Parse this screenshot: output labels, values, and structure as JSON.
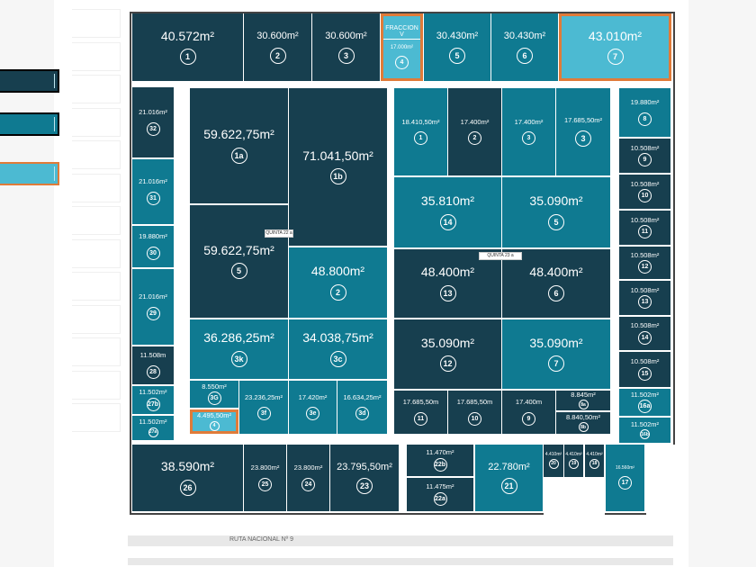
{
  "colors": {
    "dark": "#173f4f",
    "mid": "#0f7a91",
    "light": "#4cbad2",
    "highlight": "#e07b39"
  },
  "legend": [
    {
      "color": "dark"
    },
    {
      "color": "mid"
    },
    {
      "color": "light",
      "highlight": true
    }
  ],
  "labels": {
    "quinta_22a": "QUINTA 22 a",
    "quinta_23a": "QUINTA 23 a",
    "road": "RUTA NACIONAL Nº 9",
    "fraccion": "FRACCION V"
  },
  "lots": [
    {
      "id": "1",
      "area": "40.572m²",
      "color": "dark"
    },
    {
      "id": "2",
      "area": "30.600m²",
      "color": "dark"
    },
    {
      "id": "3",
      "area": "30.600m²",
      "color": "dark"
    },
    {
      "id": "4",
      "area": "17.000m²",
      "color": "light",
      "selected": true
    },
    {
      "id": "5",
      "area": "30.430m²",
      "color": "mid"
    },
    {
      "id": "6",
      "area": "30.430m²",
      "color": "mid"
    },
    {
      "id": "7",
      "area": "43.010m²",
      "color": "light",
      "selected": true
    },
    {
      "id": "32",
      "area": "21.016m²",
      "color": "dark"
    },
    {
      "id": "31",
      "area": "21.016m²",
      "color": "mid"
    },
    {
      "id": "30",
      "area": "19.880m²",
      "color": "mid"
    },
    {
      "id": "29",
      "area": "21.016m²",
      "color": "mid"
    },
    {
      "id": "28",
      "area": "11.508m",
      "color": "dark"
    },
    {
      "id": "27b",
      "area": "11.502m²",
      "color": "mid"
    },
    {
      "id": "27a",
      "area": "11.502m²",
      "color": "mid"
    },
    {
      "id": "1a",
      "area": "59.622,75m²",
      "color": "dark"
    },
    {
      "id": "1b",
      "area": "71.041,50m²",
      "color": "dark"
    },
    {
      "id": "5",
      "area": "59.622,75m²",
      "color": "dark"
    },
    {
      "id": "2",
      "area": "48.800m²",
      "color": "mid"
    },
    {
      "id": "3k",
      "area": "36.286,25m²",
      "color": "mid"
    },
    {
      "id": "3c",
      "area": "34.038,75m²",
      "color": "mid"
    },
    {
      "id": "3G",
      "area": "8.550m²",
      "color": "mid"
    },
    {
      "id": "4",
      "area": "4.495,50m²",
      "color": "light",
      "selected": true
    },
    {
      "id": "3f",
      "area": "23.236,25m²",
      "color": "mid"
    },
    {
      "id": "3e",
      "area": "17.420m²",
      "color": "mid"
    },
    {
      "id": "3d",
      "area": "16.634,25m²",
      "color": "mid"
    },
    {
      "id": "1",
      "area": "18.410,50m²",
      "color": "mid"
    },
    {
      "id": "2",
      "area": "17.400m²",
      "color": "dark"
    },
    {
      "id": "3",
      "area": "17.400m²",
      "color": "mid"
    },
    {
      "id": "3",
      "area": "17.685,50m²",
      "color": "mid"
    },
    {
      "id": "14",
      "area": "35.810m²",
      "color": "mid"
    },
    {
      "id": "5",
      "area": "35.090m²",
      "color": "mid"
    },
    {
      "id": "13",
      "area": "48.400m²",
      "color": "dark"
    },
    {
      "id": "6",
      "area": "48.400m²",
      "color": "dark"
    },
    {
      "id": "12",
      "area": "35.090m²",
      "color": "dark"
    },
    {
      "id": "7",
      "area": "35.090m²",
      "color": "mid"
    },
    {
      "id": "11",
      "area": "17.685,50m",
      "color": "dark"
    },
    {
      "id": "10",
      "area": "17.685,50m",
      "color": "dark"
    },
    {
      "id": "9",
      "area": "17.400m",
      "color": "dark"
    },
    {
      "id": "8a",
      "area": "8.845m²",
      "color": "dark"
    },
    {
      "id": "8b",
      "area": "8.840,50m²",
      "color": "dark"
    },
    {
      "id": "8",
      "area": "19.880m²",
      "color": "mid"
    },
    {
      "id": "9",
      "area": "10.508m²",
      "color": "dark"
    },
    {
      "id": "10",
      "area": "10.508m²",
      "color": "dark"
    },
    {
      "id": "11",
      "area": "10.508m²",
      "color": "dark"
    },
    {
      "id": "12",
      "area": "10.508m²",
      "color": "dark"
    },
    {
      "id": "13",
      "area": "10.508m²",
      "color": "dark"
    },
    {
      "id": "14",
      "area": "10.508m²",
      "color": "dark"
    },
    {
      "id": "15",
      "area": "10.508m²",
      "color": "dark"
    },
    {
      "id": "16a",
      "area": "11.502m²",
      "color": "mid"
    },
    {
      "id": "16b",
      "area": "11.502m²",
      "color": "mid"
    },
    {
      "id": "26",
      "area": "38.590m²",
      "color": "dark"
    },
    {
      "id": "25",
      "area": "23.800m²",
      "color": "dark"
    },
    {
      "id": "24",
      "area": "23.800m²",
      "color": "dark"
    },
    {
      "id": "23",
      "area": "23.795,50m²",
      "color": "dark"
    },
    {
      "id": "22b",
      "area": "11.470m²",
      "color": "dark"
    },
    {
      "id": "22a",
      "area": "11.475m²",
      "color": "dark"
    },
    {
      "id": "21",
      "area": "22.780m²",
      "color": "mid"
    },
    {
      "id": "20",
      "area": "4.410m²",
      "color": "dark"
    },
    {
      "id": "19",
      "area": "4.410m²",
      "color": "dark"
    },
    {
      "id": "18",
      "area": "4.410m²",
      "color": "dark"
    },
    {
      "id": "17",
      "area": "16.560m²",
      "color": "mid"
    }
  ]
}
